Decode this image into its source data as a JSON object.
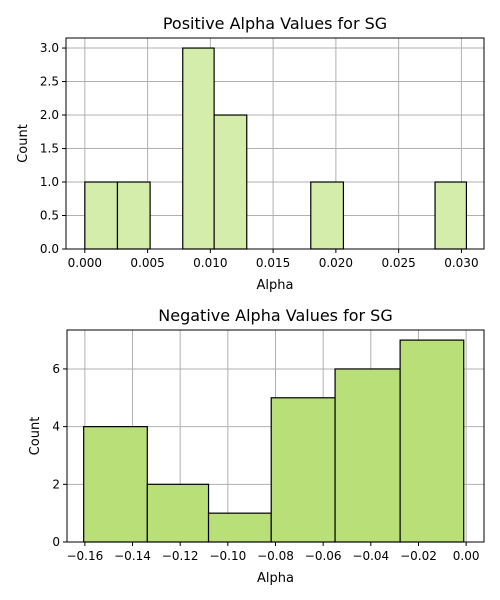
{
  "chart_data": [
    {
      "type": "bar",
      "title": "Positive Alpha Values for SG",
      "xlabel": "Alpha",
      "ylabel": "Count",
      "xlim": [
        -0.0015,
        0.0318
      ],
      "ylim": [
        0,
        3.15
      ],
      "xticks": [
        0.0,
        0.005,
        0.01,
        0.015,
        0.02,
        0.025,
        0.03
      ],
      "xtick_labels": [
        "0.000",
        "0.005",
        "0.010",
        "0.015",
        "0.020",
        "0.025",
        "0.030"
      ],
      "yticks": [
        0.0,
        0.5,
        1.0,
        1.5,
        2.0,
        2.5,
        3.0
      ],
      "ytick_labels": [
        "0.0",
        "0.5",
        "1.0",
        "1.5",
        "2.0",
        "2.5",
        "3.0"
      ],
      "grid": true,
      "bar_color": "#d4edaa",
      "bins": [
        {
          "x0": 0.0,
          "x1": 0.0026,
          "count": 1
        },
        {
          "x0": 0.0026,
          "x1": 0.0052,
          "count": 1
        },
        {
          "x0": 0.0078,
          "x1": 0.0103,
          "count": 3
        },
        {
          "x0": 0.0103,
          "x1": 0.0129,
          "count": 2
        },
        {
          "x0": 0.018,
          "x1": 0.0206,
          "count": 1
        },
        {
          "x0": 0.0279,
          "x1": 0.0304,
          "count": 1
        }
      ]
    },
    {
      "type": "bar",
      "title": "Negative Alpha Values for SG",
      "xlabel": "Alpha",
      "ylabel": "Count",
      "xlim": [
        -0.1675,
        0.0075
      ],
      "ylim": [
        0,
        7.35
      ],
      "xticks": [
        -0.16,
        -0.14,
        -0.12,
        -0.1,
        -0.08,
        -0.06,
        -0.04,
        -0.02,
        0.0
      ],
      "xtick_labels": [
        "−0.16",
        "−0.14",
        "−0.12",
        "−0.10",
        "−0.08",
        "−0.06",
        "−0.04",
        "−0.02",
        "0.00"
      ],
      "yticks": [
        0,
        2,
        4,
        6
      ],
      "ytick_labels": [
        "0",
        "2",
        "4",
        "6"
      ],
      "grid": true,
      "bar_color": "#b8df78",
      "bins": [
        {
          "x0": -0.1605,
          "x1": -0.1338,
          "count": 4
        },
        {
          "x0": -0.1338,
          "x1": -0.1081,
          "count": 2
        },
        {
          "x0": -0.1081,
          "x1": -0.0818,
          "count": 1
        },
        {
          "x0": -0.0818,
          "x1": -0.055,
          "count": 5
        },
        {
          "x0": -0.055,
          "x1": -0.0277,
          "count": 6
        },
        {
          "x0": -0.0277,
          "x1": -0.001,
          "count": 7
        }
      ]
    }
  ]
}
